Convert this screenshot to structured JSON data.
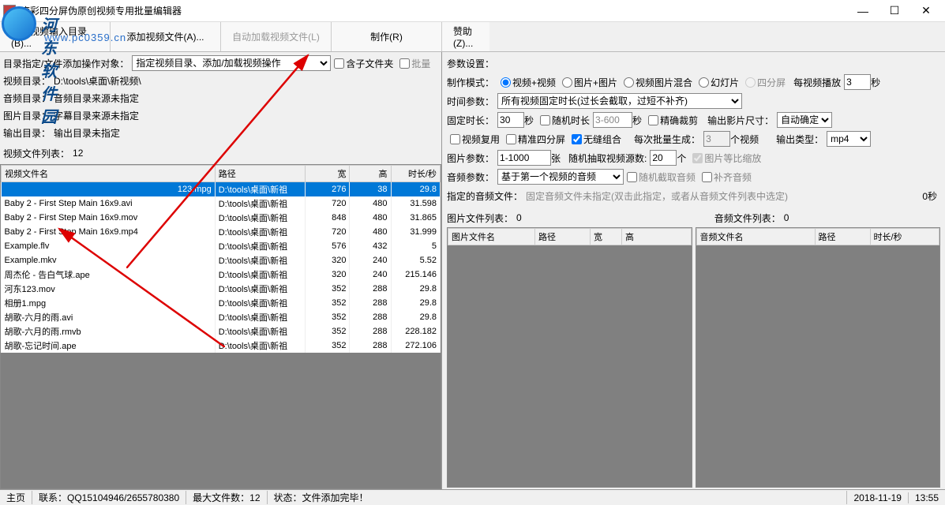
{
  "window": {
    "title": "度彩四分屏伪原创视频专用批量编辑器",
    "min": "—",
    "max": "☐",
    "close": "✕"
  },
  "toolbar": {
    "b1": "指定视频输入目录(B)...",
    "b2": "添加视频文件(A)...",
    "b3": "自动加载视频文件(L)",
    "b4": "制作(R)",
    "b5": "赞助(Z)..."
  },
  "left": {
    "target_label": "目录指定/文件添加操作对象：",
    "target_value": "指定视频目录、添加/加载视频操作",
    "cb_subdir": "含子文件夹",
    "cb_batch": "批量",
    "dirs": {
      "video_l": "视频目录：",
      "video_v": "D:\\tools\\桌面\\新视频\\",
      "audio_l": "音频目录：",
      "audio_v": "音频目录来源未指定",
      "image_l": "图片目录：",
      "image_v": "字幕目录来源未指定",
      "output_l": "输出目录：",
      "output_v": "输出目录未指定"
    },
    "list_count_label": "视频文件列表：",
    "list_count": "12",
    "cols": {
      "name": "视频文件名",
      "path": "路径",
      "w": "宽",
      "h": "高",
      "dur": "时长/秒"
    },
    "rows": [
      {
        "name": "123.mpg",
        "path": "D:\\tools\\桌面\\新祖",
        "w": "276",
        "h": "38",
        "dur": "29.8",
        "sel": true
      },
      {
        "name": "Baby 2 - First Step Main 16x9.avi",
        "path": "D:\\tools\\桌面\\新祖",
        "w": "720",
        "h": "480",
        "dur": "31.598"
      },
      {
        "name": "Baby 2 - First Step Main 16x9.mov",
        "path": "D:\\tools\\桌面\\新祖",
        "w": "848",
        "h": "480",
        "dur": "31.865"
      },
      {
        "name": "Baby 2 - First Step Main 16x9.mp4",
        "path": "D:\\tools\\桌面\\新祖",
        "w": "720",
        "h": "480",
        "dur": "31.999"
      },
      {
        "name": "Example.flv",
        "path": "D:\\tools\\桌面\\新祖",
        "w": "576",
        "h": "432",
        "dur": "5"
      },
      {
        "name": "Example.mkv",
        "path": "D:\\tools\\桌面\\新祖",
        "w": "320",
        "h": "240",
        "dur": "5.52"
      },
      {
        "name": "周杰伦 - 告白气球.ape",
        "path": "D:\\tools\\桌面\\新祖",
        "w": "320",
        "h": "240",
        "dur": "215.146"
      },
      {
        "name": "河东123.mov",
        "path": "D:\\tools\\桌面\\新祖",
        "w": "352",
        "h": "288",
        "dur": "29.8"
      },
      {
        "name": "相册1.mpg",
        "path": "D:\\tools\\桌面\\新祖",
        "w": "352",
        "h": "288",
        "dur": "29.8"
      },
      {
        "name": "胡歌-六月的雨.avi",
        "path": "D:\\tools\\桌面\\新祖",
        "w": "352",
        "h": "288",
        "dur": "29.8"
      },
      {
        "name": "胡歌-六月的雨.rmvb",
        "path": "D:\\tools\\桌面\\新祖",
        "w": "352",
        "h": "288",
        "dur": "228.182"
      },
      {
        "name": "胡歌-忘记时间.ape",
        "path": "D:\\tools\\桌面\\新祖",
        "w": "352",
        "h": "288",
        "dur": "272.106"
      }
    ]
  },
  "right": {
    "param_label": "参数设置：",
    "mode_label": "制作模式：",
    "modes": {
      "vv": "视频+视频",
      "pp": "图片+图片",
      "vpm": "视频图片混合",
      "slide": "幻灯片",
      "quad": "四分屏"
    },
    "perplay_l": "每视频播放",
    "perplay_v": "3",
    "perplay_u": "秒",
    "time_label": "时间参数：",
    "time_value": "所有视频固定时长(过长会截取，过短不补齐)",
    "fixed_l": "固定时长：",
    "fixed_v": "30",
    "fixed_u": "秒",
    "rand_l": "随机时长",
    "rand_v": "3-600",
    "rand_u": "秒",
    "precise": "精确裁剪",
    "outsize_l": "输出影片尺寸：",
    "outsize_v": "自动确定",
    "reuse": "视频复用",
    "precise4": "精准四分屏",
    "seamless": "无缝组合",
    "batch_l": "每次批量生成：",
    "batch_v": "3",
    "batch_u": "个视频",
    "outtype_l": "输出类型：",
    "outtype_v": "mp4",
    "img_l": "图片参数：",
    "img_range": "1-1000",
    "img_u": "张",
    "rand_src_l": "随机抽取视频源数:",
    "rand_src_v": "20",
    "rand_src_u": "个",
    "img_scale": "图片等比缩放",
    "audio_l": "音频参数：",
    "audio_v": "基于第一个视频的音频",
    "rand_cut": "随机截取音频",
    "fill_audio": "补齐音频",
    "spec_audio_l": "指定的音频文件：",
    "spec_audio_v": "固定音频文件未指定(双击此指定，或者从音频文件列表中选定)",
    "spec_audio_t": "0秒",
    "img_list_l": "图片文件列表：",
    "img_list_n": "0",
    "audio_list_l": "音频文件列表：",
    "audio_list_n": "0",
    "img_cols": {
      "name": "图片文件名",
      "path": "路径",
      "w": "宽",
      "h": "高"
    },
    "audio_cols": {
      "name": "音频文件名",
      "path": "路径",
      "dur": "时长/秒"
    }
  },
  "status": {
    "home": "主页",
    "contact": "联系：QQ15104946/2655780380",
    "maxfiles_l": "最大文件数：",
    "maxfiles_v": "12",
    "state_l": "状态：",
    "state_v": "文件添加完毕！",
    "date": "2018-11-19",
    "time": "13:55"
  },
  "watermark": {
    "name": "河东软件园",
    "url": "www.pc0359.cn"
  }
}
